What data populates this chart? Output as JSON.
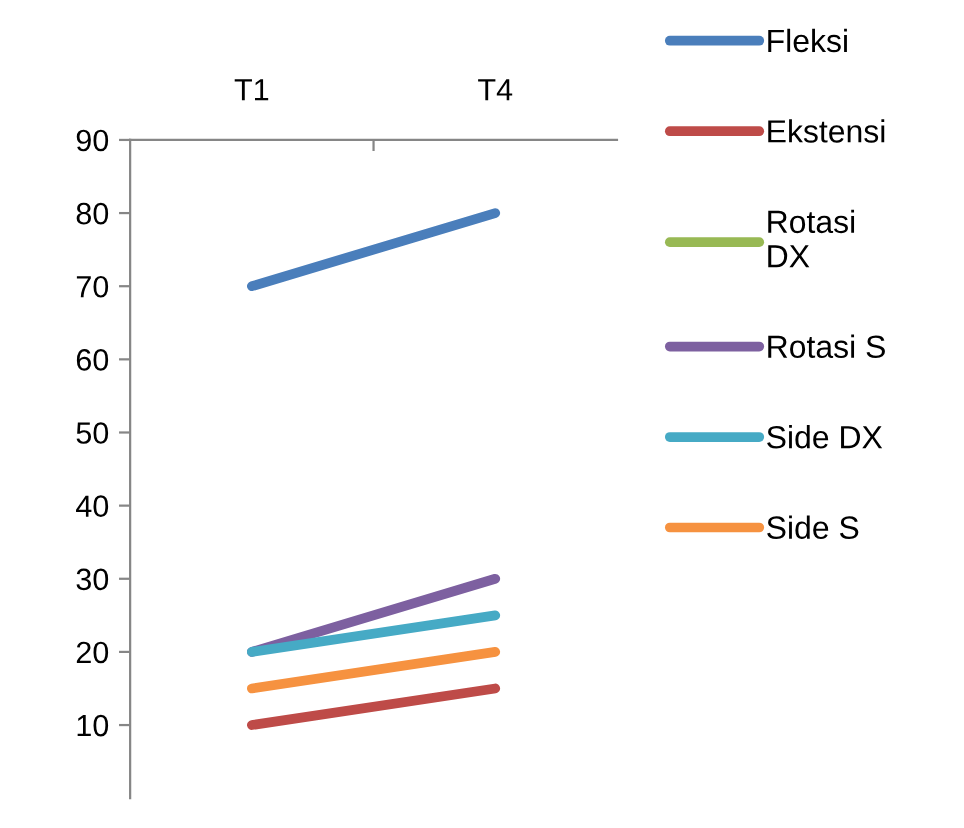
{
  "chart_data": {
    "type": "line",
    "categories": [
      "T1",
      "T4"
    ],
    "series": [
      {
        "name": "Fleksi",
        "color": "#4a7ebb",
        "values": [
          70,
          80
        ]
      },
      {
        "name": "Ekstensi",
        "color": "#be4b48",
        "values": [
          10,
          15
        ]
      },
      {
        "name": "Rotasi DX",
        "color": "#98b954",
        "values": [
          null,
          null
        ]
      },
      {
        "name": "Rotasi S",
        "color": "#7d60a0",
        "values": [
          20,
          30
        ]
      },
      {
        "name": "Side DX",
        "color": "#46aac5",
        "values": [
          20,
          25
        ]
      },
      {
        "name": "Side S",
        "color": "#f69240",
        "values": [
          15,
          20
        ]
      }
    ],
    "ylim": [
      0,
      90
    ],
    "yticks": [
      10,
      20,
      30,
      40,
      50,
      60,
      70,
      80,
      90
    ],
    "grid": false,
    "legend": "right",
    "marker": "none",
    "line_style": "solid"
  }
}
